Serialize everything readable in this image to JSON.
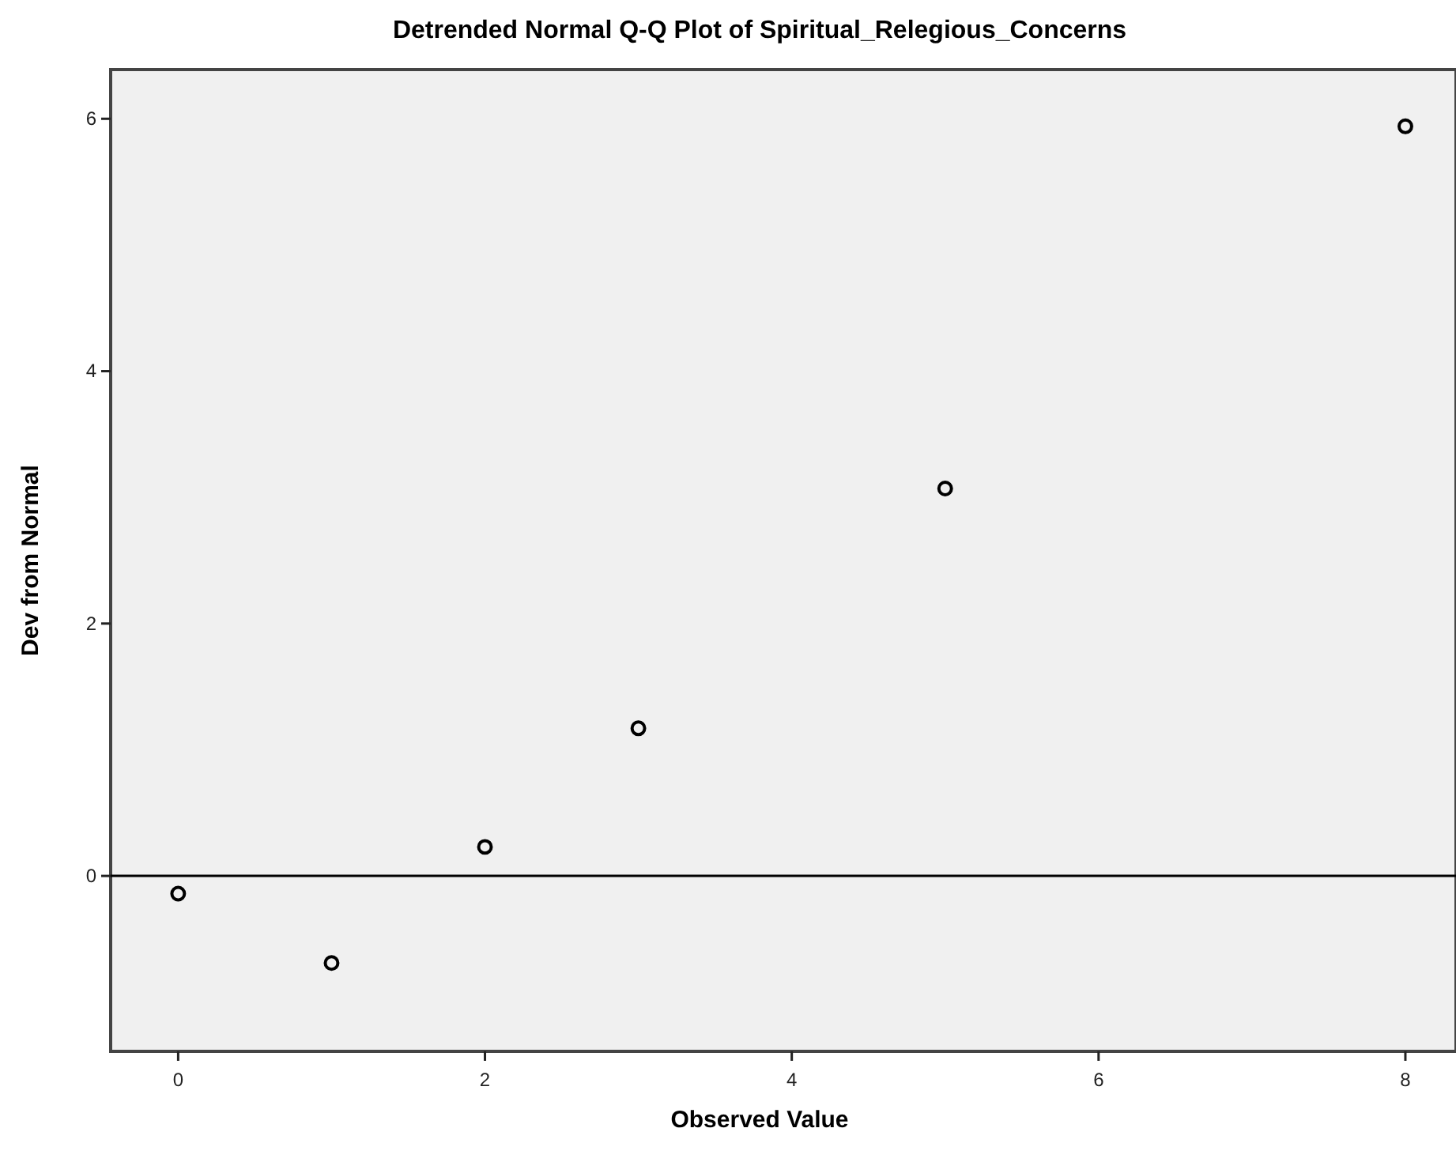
{
  "chart_data": {
    "type": "scatter",
    "title": "Detrended Normal Q-Q Plot of Spiritual_Relegious_Concerns",
    "xlabel": "Observed Value",
    "ylabel": "Dev from Normal",
    "x": [
      0,
      1,
      2,
      3,
      5,
      8
    ],
    "series": [
      {
        "color": "#000000",
        "values": [
          -0.14,
          -0.69,
          0.23,
          1.17,
          3.07,
          5.94
        ]
      }
    ],
    "xlim": [
      -0.44,
      8.33
    ],
    "xticks": [
      0,
      2,
      4,
      6,
      8
    ],
    "ylim": [
      -1.39,
      6.39
    ],
    "yticks": [
      0,
      2,
      4,
      6
    ],
    "ref_lines": [
      {
        "axis": "y",
        "value": 0,
        "color": "#000000"
      }
    ],
    "marker": "circle",
    "grid": false
  }
}
